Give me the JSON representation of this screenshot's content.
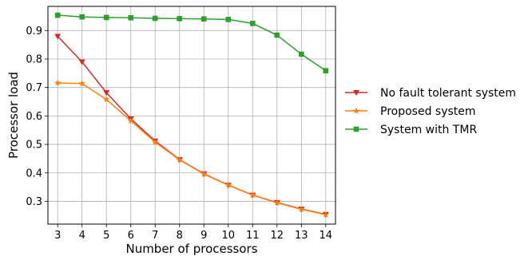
{
  "chart_data": {
    "type": "line",
    "title": "",
    "xlabel": "Number of processors",
    "ylabel": "Processor load",
    "x": [
      3,
      4,
      5,
      6,
      7,
      8,
      9,
      10,
      11,
      12,
      13,
      14
    ],
    "xlim": [
      2.6,
      14.4
    ],
    "ylim": [
      0.22,
      0.985
    ],
    "x_ticks": [
      "3",
      "4",
      "5",
      "6",
      "7",
      "8",
      "9",
      "10",
      "11",
      "12",
      "13",
      "14"
    ],
    "y_ticks": [
      "0.3",
      "0.4",
      "0.5",
      "0.6",
      "0.7",
      "0.8",
      "0.9"
    ],
    "grid": true,
    "legend_position": "right",
    "series": [
      {
        "name": "No fault tolerant system",
        "color": "#d62728",
        "marker": "triangle-down",
        "values": [
          0.88,
          0.79,
          0.682,
          0.59,
          0.512,
          0.447,
          0.397,
          0.357,
          0.322,
          0.296,
          0.273,
          0.254
        ]
      },
      {
        "name": "Proposed system",
        "color": "#ff7f0e",
        "marker": "star",
        "values": [
          0.716,
          0.714,
          0.658,
          0.583,
          0.508,
          0.446,
          0.396,
          0.357,
          0.322,
          0.295,
          0.272,
          0.253
        ]
      },
      {
        "name": "System with TMR",
        "color": "#2ca02c",
        "marker": "square",
        "values": [
          0.954,
          0.948,
          0.946,
          0.945,
          0.943,
          0.942,
          0.941,
          0.939,
          0.925,
          0.884,
          0.817,
          0.759
        ]
      }
    ]
  }
}
